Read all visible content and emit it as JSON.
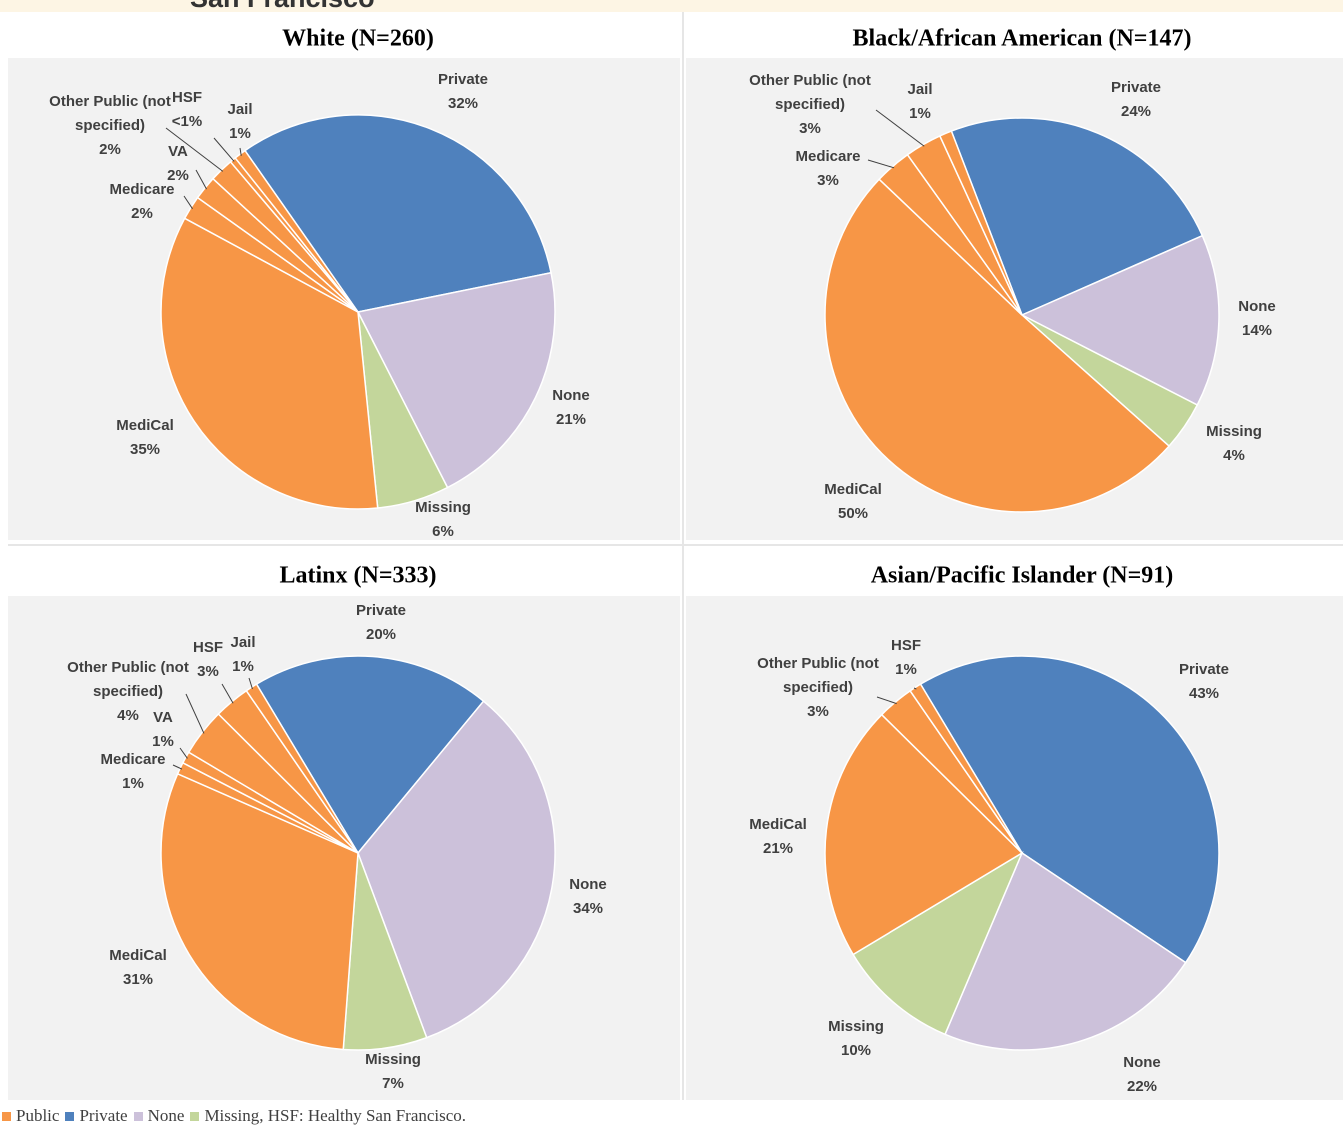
{
  "header": {
    "title": "San Francisco"
  },
  "chart_data": [
    {
      "type": "pie",
      "title": "White (N=260)",
      "start_angle": -35,
      "categories": [
        "Private",
        "None",
        "Missing",
        "MediCal",
        "Medicare",
        "VA",
        "Other Public (not specified)",
        "HSF",
        "Jail"
      ],
      "values": [
        32,
        21,
        6,
        35,
        2,
        2,
        2,
        0.5,
        1
      ],
      "value_labels": [
        "32%",
        "21%",
        "6%",
        "35%",
        "2%",
        "2%",
        "2%",
        "<1%",
        "1%"
      ],
      "colors": [
        "#4f81bd",
        "#ccc1da",
        "#c3d69b",
        "#f79646",
        "#f79646",
        "#f79646",
        "#f79646",
        "#f79646",
        "#f79646"
      ]
    },
    {
      "type": "pie",
      "title": "Black/African American (N=147)",
      "start_angle": -21,
      "categories": [
        "Private",
        "None",
        "Missing",
        "MediCal",
        "Medicare",
        "Other Public (not specified)",
        "Jail"
      ],
      "values": [
        24,
        14,
        4,
        50,
        3,
        3,
        1
      ],
      "value_labels": [
        "24%",
        "14%",
        "4%",
        "50%",
        "3%",
        "3%",
        "1%"
      ],
      "colors": [
        "#4f81bd",
        "#ccc1da",
        "#c3d69b",
        "#f79646",
        "#f79646",
        "#f79646",
        "#f79646"
      ]
    },
    {
      "type": "pie",
      "title": "Latinx (N=333)",
      "start_angle": -31,
      "categories": [
        "Private",
        "None",
        "Missing",
        "MediCal",
        "Medicare",
        "VA",
        "Other Public (not specified)",
        "HSF",
        "Jail"
      ],
      "values": [
        20,
        34,
        7,
        31,
        1,
        1,
        4,
        3,
        1
      ],
      "value_labels": [
        "20%",
        "34%",
        "7%",
        "31%",
        "1%",
        "1%",
        "4%",
        "3%",
        "1%"
      ],
      "colors": [
        "#4f81bd",
        "#ccc1da",
        "#c3d69b",
        "#f79646",
        "#f79646",
        "#f79646",
        "#f79646",
        "#f79646",
        "#f79646"
      ]
    },
    {
      "type": "pie",
      "title": "Asian/Pacific Islander (N=91)",
      "start_angle": -31,
      "categories": [
        "Private",
        "None",
        "Missing",
        "MediCal",
        "Other Public (not specified)",
        "HSF"
      ],
      "values": [
        43,
        22,
        10,
        21,
        3,
        1
      ],
      "value_labels": [
        "43%",
        "22%",
        "10%",
        "21%",
        "3%",
        "1%"
      ],
      "colors": [
        "#4f81bd",
        "#ccc1da",
        "#c3d69b",
        "#f79646",
        "#f79646",
        "#f79646"
      ]
    }
  ],
  "legend": {
    "items": [
      {
        "name": "Public",
        "color": "#f79646"
      },
      {
        "name": "Private",
        "color": "#4f81bd"
      },
      {
        "name": "None",
        "color": "#ccc1da"
      },
      {
        "name": "Missing",
        "color": "#c3d69b"
      }
    ],
    "note": ", HSF: Healthy San Francisco."
  }
}
